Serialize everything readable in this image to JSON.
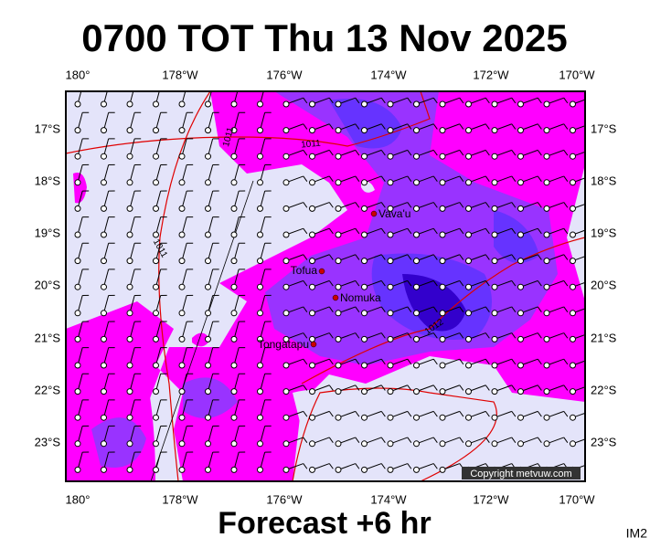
{
  "header": {
    "title": "0700 TOT Thu 13 Nov 2025"
  },
  "footer": {
    "caption": "Forecast +6 hr",
    "code": "IM2"
  },
  "map": {
    "longitude_labels": [
      "180°",
      "178°W",
      "176°W",
      "174°W",
      "172°W",
      "170°W"
    ],
    "latitude_labels": [
      "17°S",
      "18°S",
      "19°S",
      "20°S",
      "21°S",
      "22°S",
      "23°S"
    ],
    "places": [
      "Vava'u",
      "Tofua",
      "Nomuka",
      "Tongatapu"
    ],
    "isobar_labels": [
      "1011",
      "1011",
      "1011",
      "1012"
    ],
    "copyright": "Copyright metvuw.com"
  }
}
